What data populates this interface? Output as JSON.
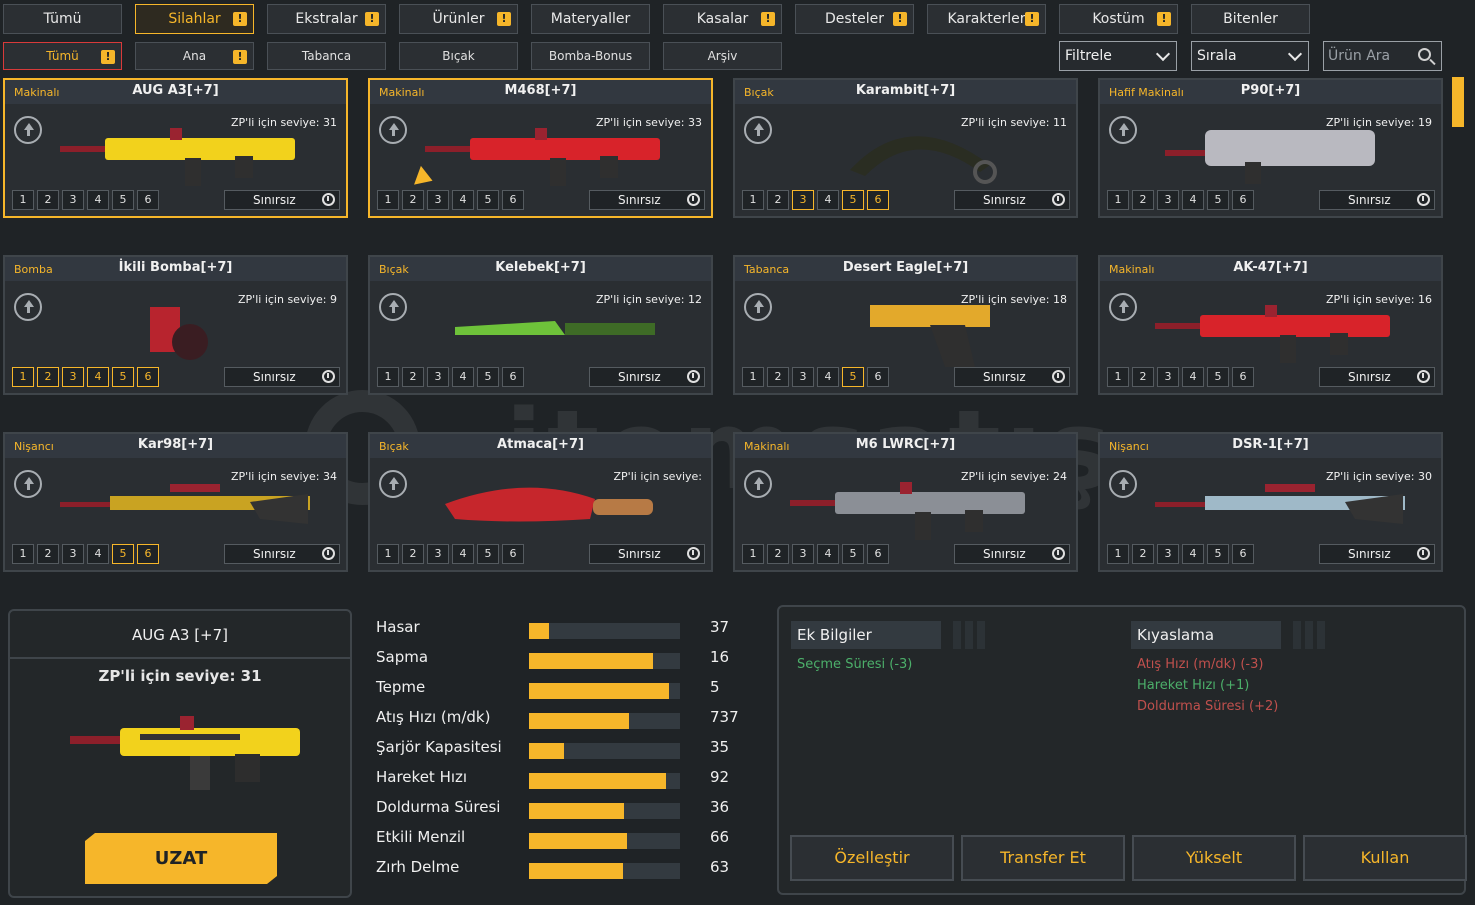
{
  "top_tabs": [
    {
      "label": "Tümü",
      "warn": false,
      "active": false
    },
    {
      "label": "Silahlar",
      "warn": true,
      "active": true
    },
    {
      "label": "Ekstralar",
      "warn": true,
      "active": false
    },
    {
      "label": "Ürünler",
      "warn": true,
      "active": false
    },
    {
      "label": "Materyaller",
      "warn": false,
      "active": false
    },
    {
      "label": "Kasalar",
      "warn": true,
      "active": false
    },
    {
      "label": "Desteler",
      "warn": true,
      "active": false
    },
    {
      "label": "Karakterler",
      "warn": true,
      "active": false
    },
    {
      "label": "Kostüm",
      "warn": true,
      "active": false
    },
    {
      "label": "Bitenler",
      "warn": false,
      "active": false
    }
  ],
  "sub_tabs": [
    {
      "label": "Tümü",
      "warn": true,
      "active": true
    },
    {
      "label": "Ana",
      "warn": true,
      "active": false
    },
    {
      "label": "Tabanca",
      "warn": false,
      "active": false
    },
    {
      "label": "Bıçak",
      "warn": false,
      "active": false
    },
    {
      "label": "Bomba-Bonus",
      "warn": false,
      "active": false
    },
    {
      "label": "Arşiv",
      "warn": false,
      "active": false
    }
  ],
  "warn_symbol": "!",
  "filter_label": "Filtrele",
  "sort_label": "Sırala",
  "search_placeholder": "Ürün Ara",
  "level_prefix": "ZP'li için seviye: ",
  "duration_label": "Sınırsız",
  "level_numbers": [
    "1",
    "2",
    "3",
    "4",
    "5",
    "6"
  ],
  "cards": [
    {
      "type": "Makinalı",
      "name": "AUG A3[+7]",
      "level": "31",
      "selected": true,
      "on_levels": [],
      "weapon_color": "#f2d21c",
      "weapon_icon": "rifle"
    },
    {
      "type": "Makinalı",
      "name": "M468[+7]",
      "level": "33",
      "selected": true,
      "on_levels": [],
      "weapon_color": "#d8232a",
      "weapon_icon": "rifle"
    },
    {
      "type": "Bıçak",
      "name": "Karambit[+7]",
      "level": "11",
      "selected": false,
      "on_levels": [
        3,
        5,
        6
      ],
      "weapon_color": "#3b3f2a",
      "weapon_icon": "karambit"
    },
    {
      "type": "Hafif Makinalı",
      "name": "P90[+7]",
      "level": "19",
      "selected": false,
      "on_levels": [],
      "weapon_color": "#b9b9c0",
      "weapon_icon": "smg"
    },
    {
      "type": "Bomba",
      "name": "İkili Bomba[+7]",
      "level": "9",
      "selected": false,
      "on_levels": [
        1,
        2,
        3,
        4,
        5,
        6
      ],
      "weapon_color": "#b8242e",
      "weapon_icon": "grenade"
    },
    {
      "type": "Bıçak",
      "name": "Kelebek[+7]",
      "level": "12",
      "selected": false,
      "on_levels": [],
      "weapon_color": "#6ec23a",
      "weapon_icon": "knife"
    },
    {
      "type": "Tabanca",
      "name": "Desert Eagle[+7]",
      "level": "18",
      "selected": false,
      "on_levels": [
        5
      ],
      "weapon_color": "#e3a92b",
      "weapon_icon": "pistol"
    },
    {
      "type": "Makinalı",
      "name": "AK-47[+7]",
      "level": "16",
      "selected": false,
      "on_levels": [],
      "weapon_color": "#d8232a",
      "weapon_icon": "rifle"
    },
    {
      "type": "Nişancı",
      "name": "Kar98[+7]",
      "level": "34",
      "selected": false,
      "on_levels": [
        5,
        6
      ],
      "weapon_color": "#c9a322",
      "weapon_icon": "sniper"
    },
    {
      "type": "Bıçak",
      "name": "Atmaca[+7]",
      "level": "",
      "selected": false,
      "on_levels": [],
      "weapon_color": "#c6262c",
      "weapon_icon": "kukri"
    },
    {
      "type": "Makinalı",
      "name": "M6 LWRC[+7]",
      "level": "24",
      "selected": false,
      "on_levels": [],
      "weapon_color": "#8b8f96",
      "weapon_icon": "rifle"
    },
    {
      "type": "Nişancı",
      "name": "DSR-1[+7]",
      "level": "30",
      "selected": false,
      "on_levels": [],
      "weapon_color": "#9fb9c8",
      "weapon_icon": "sniper"
    }
  ],
  "detail": {
    "name": "AUG A3 [+7]",
    "level_text": "ZP'li için seviye: 31",
    "action": "UZAT"
  },
  "stats": [
    {
      "label": "Hasar",
      "value": "37",
      "fill": 0.13
    },
    {
      "label": "Sapma",
      "value": "16",
      "fill": 0.82
    },
    {
      "label": "Tepme",
      "value": "5",
      "fill": 0.93
    },
    {
      "label": "Atış Hızı (m/dk)",
      "value": "737",
      "fill": 0.66
    },
    {
      "label": "Şarjör Kapasitesi",
      "value": "35",
      "fill": 0.23
    },
    {
      "label": "Hareket Hızı",
      "value": "92",
      "fill": 0.91
    },
    {
      "label": "Doldurma Süresi",
      "value": "36",
      "fill": 0.63
    },
    {
      "label": "Etkili Menzil",
      "value": "66",
      "fill": 0.65
    },
    {
      "label": "Zırh Delme",
      "value": "63",
      "fill": 0.62
    }
  ],
  "info": {
    "extra_title": "Ek Bilgiler",
    "extra_lines": [
      {
        "text": "Seçme Süresi (-3)",
        "color": "#4caf6a"
      }
    ],
    "compare_title": "Kıyaslama",
    "compare_lines": [
      {
        "text": "Atış Hızı (m/dk) (-3)",
        "color": "#c0504d"
      },
      {
        "text": "Hareket Hızı (+1)",
        "color": "#4caf6a"
      },
      {
        "text": "Doldurma Süresi (+2)",
        "color": "#c0504d"
      }
    ]
  },
  "actions": [
    "Özelleştir",
    "Transfer Et",
    "Yükselt",
    "Kullan"
  ],
  "watermark_text": "itemsatış"
}
